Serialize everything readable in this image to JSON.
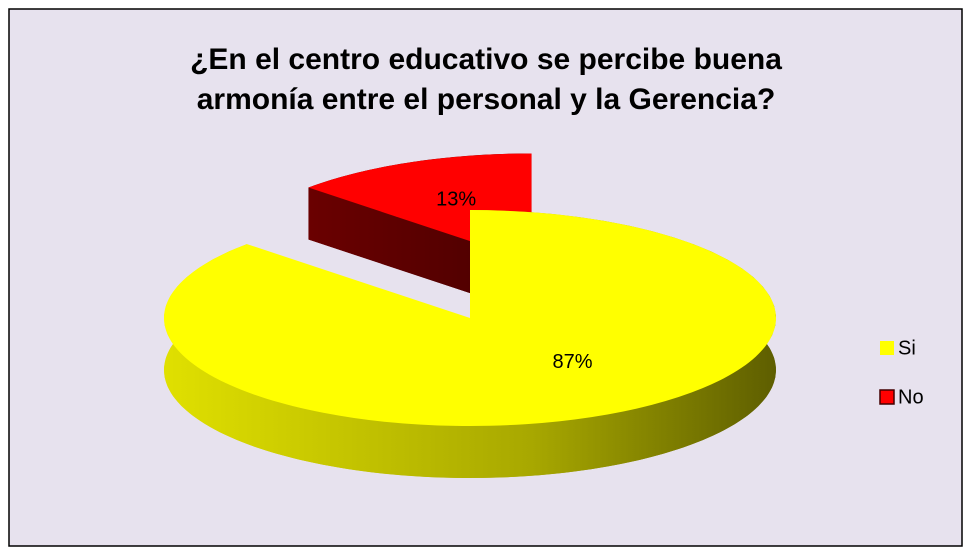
{
  "chart_data": {
    "type": "pie3d",
    "title": "¿En el centro educativo se percibe buena armonía entre el personal y la Gerencia?",
    "categories": [
      "Si",
      "No"
    ],
    "values": [
      87,
      13
    ],
    "value_labels": [
      "87%",
      "13%"
    ],
    "colors": [
      "#ffff00",
      "#ff0000"
    ],
    "legend": "right"
  }
}
